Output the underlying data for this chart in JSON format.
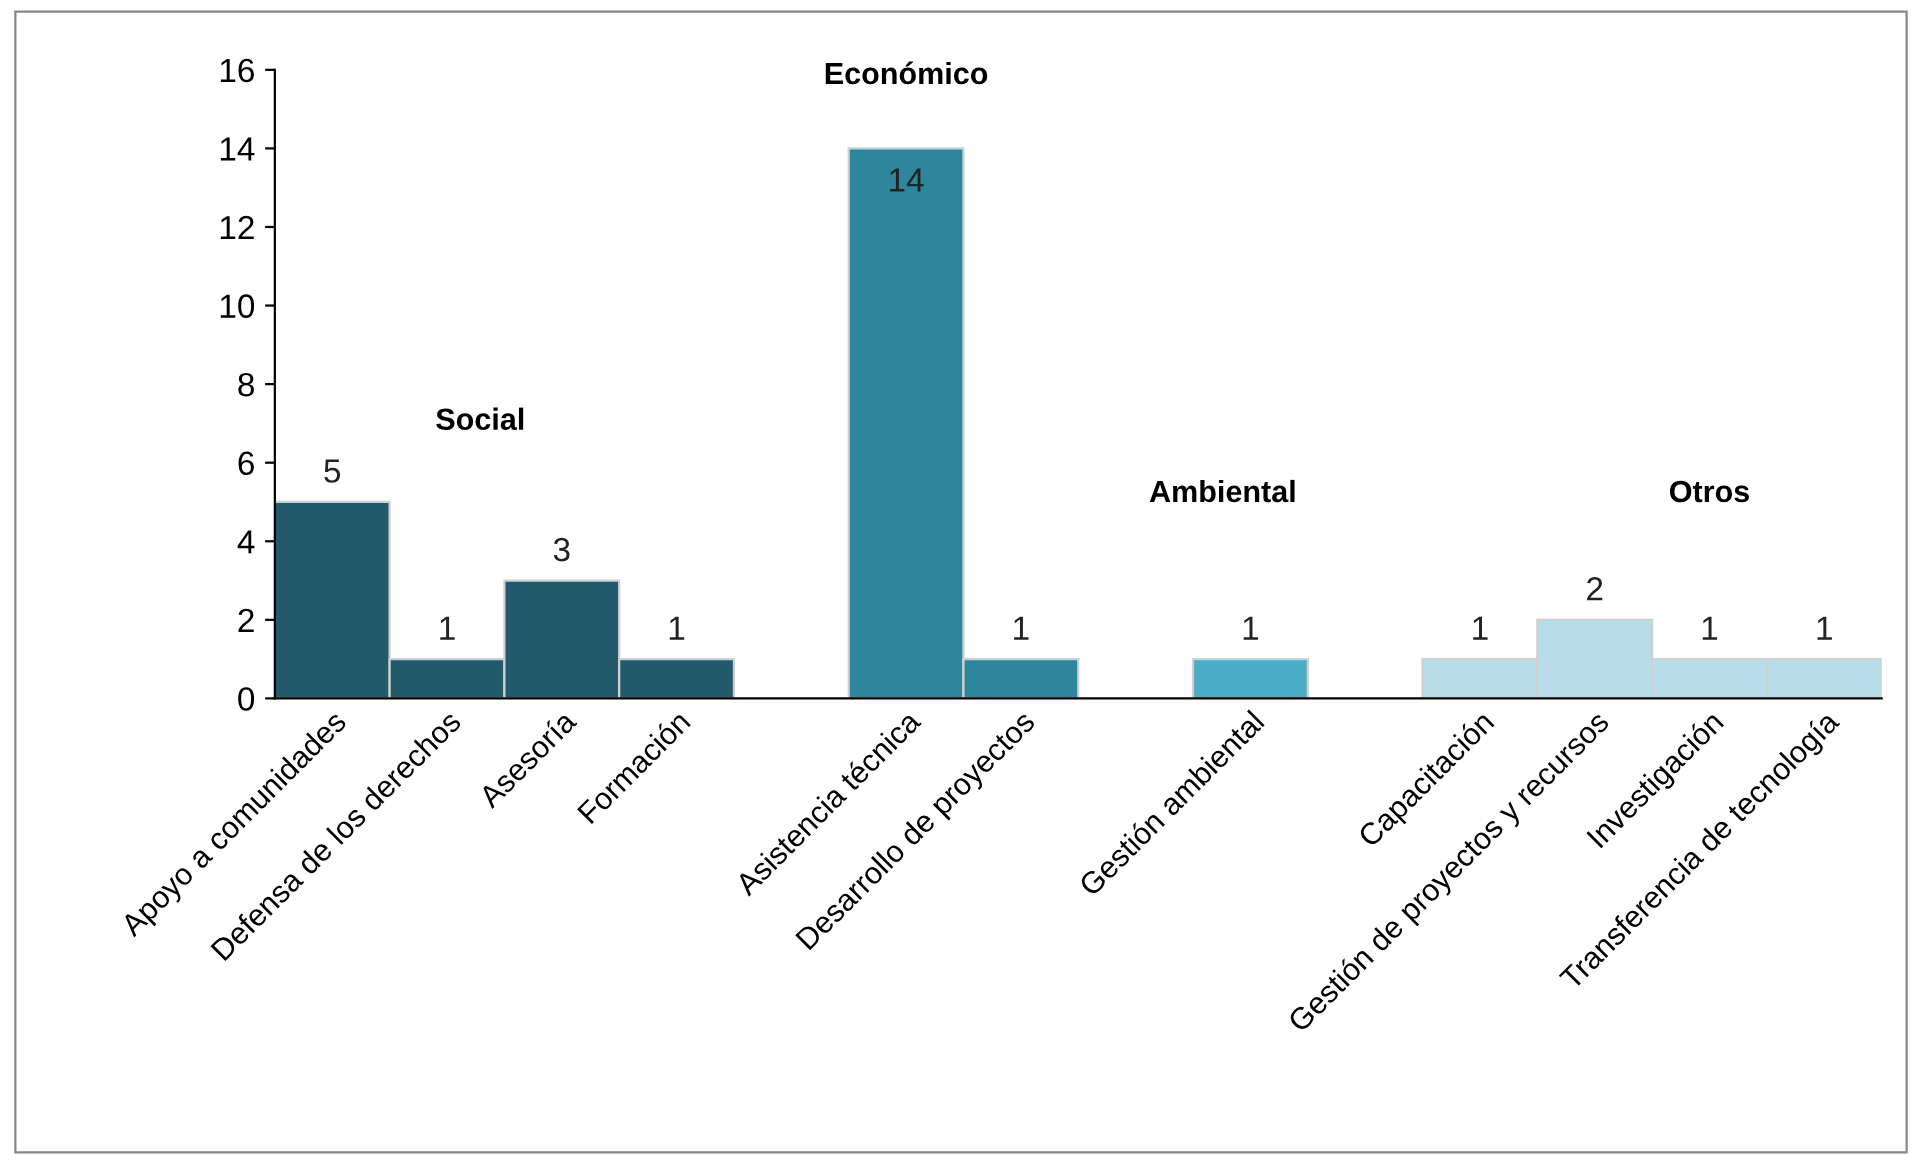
{
  "chart_data": {
    "type": "bar",
    "categories": [
      "Apoyo a comunidades",
      "Defensa de los derechos",
      "Asesoría",
      "Formación",
      null,
      "Asistencia técnica",
      "Desarrollo de proyectos",
      null,
      "Gestión ambiental",
      null,
      "Capacitación",
      "Gestión de proyectos y recursos",
      "Investigación",
      "Transferencia de tecnología"
    ],
    "values": [
      5,
      1,
      3,
      1,
      null,
      14,
      1,
      null,
      1,
      null,
      1,
      2,
      1,
      1
    ],
    "colors": [
      "#235a6b",
      "#235a6b",
      "#235a6b",
      "#235a6b",
      null,
      "#2e869c",
      "#2e869c",
      null,
      "#4bacc6",
      null,
      "#b7dde8",
      "#b7dde8",
      "#b7dde8",
      "#b7dde8"
    ],
    "ylim": [
      0,
      16
    ],
    "yticks": [
      0,
      2,
      4,
      6,
      8,
      10,
      12,
      14,
      16
    ],
    "grid": false,
    "data_labels": true,
    "annotations": [
      "Social",
      "Económico",
      "Ambiental",
      "Otros"
    ]
  }
}
